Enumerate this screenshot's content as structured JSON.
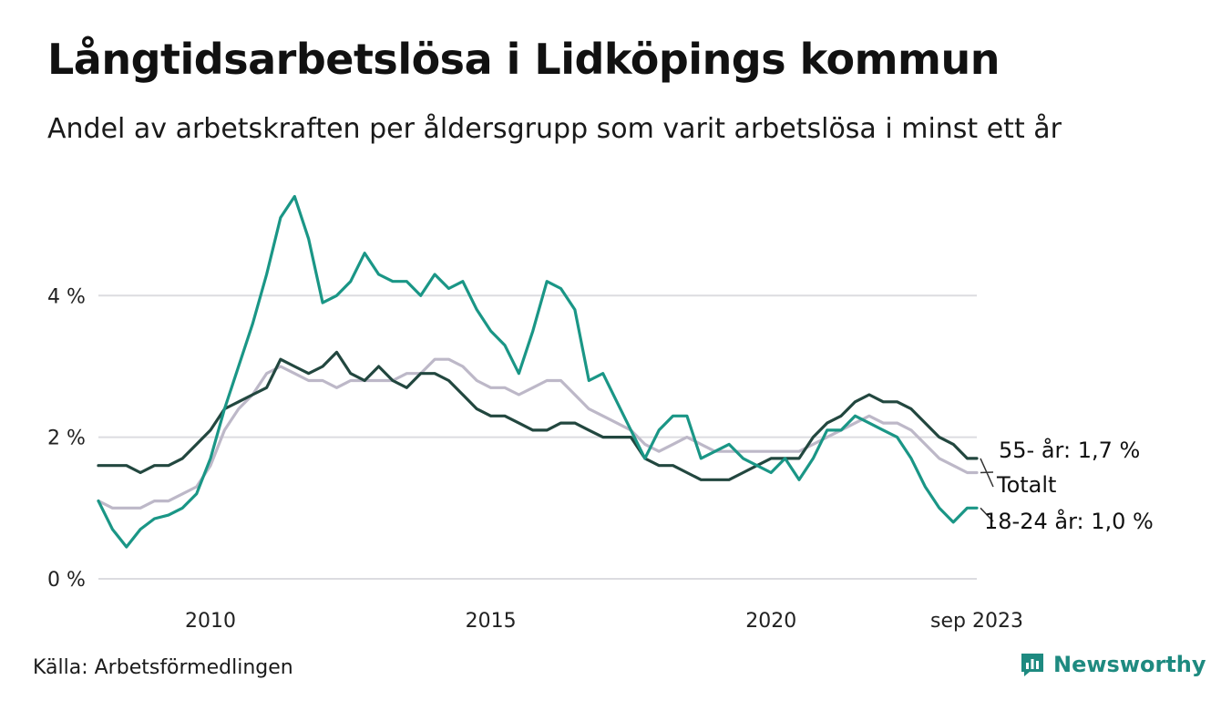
{
  "title": "Långtidsarbetslösa i Lidköpings kommun",
  "subtitle": "Andel av arbetskraften per åldersgrupp som varit arbetslösa i minst ett år",
  "source": "Källa: Arbetsförmedlingen",
  "brand": {
    "name": "Newsworthy",
    "color": "#1e8a80",
    "icon": "newsworthy-logo-icon"
  },
  "chart_data": {
    "type": "line",
    "title": "Långtidsarbetslösa i Lidköpings kommun",
    "xlabel": "",
    "ylabel": "",
    "xlim": [
      2008.0,
      2023.67
    ],
    "ylim": [
      0,
      5.6
    ],
    "y_ticks": [
      {
        "value": 0,
        "label": "0 %"
      },
      {
        "value": 2,
        "label": "2 %"
      },
      {
        "value": 4,
        "label": "4 %"
      }
    ],
    "x_ticks": [
      {
        "value": 2010,
        "label": "2010"
      },
      {
        "value": 2015,
        "label": "2015"
      },
      {
        "value": 2020,
        "label": "2020"
      },
      {
        "value": 2023.67,
        "label": "sep 2023"
      }
    ],
    "grid": true,
    "series": [
      {
        "name": "Totalt",
        "color": "#bdb8c8",
        "end_label": "Totalt",
        "points": [
          [
            2008.0,
            1.1
          ],
          [
            2008.25,
            1.0
          ],
          [
            2008.5,
            1.0
          ],
          [
            2008.75,
            1.0
          ],
          [
            2009.0,
            1.1
          ],
          [
            2009.25,
            1.1
          ],
          [
            2009.5,
            1.2
          ],
          [
            2009.75,
            1.3
          ],
          [
            2010.0,
            1.6
          ],
          [
            2010.25,
            2.1
          ],
          [
            2010.5,
            2.4
          ],
          [
            2010.75,
            2.6
          ],
          [
            2011.0,
            2.9
          ],
          [
            2011.25,
            3.0
          ],
          [
            2011.5,
            2.9
          ],
          [
            2011.75,
            2.8
          ],
          [
            2012.0,
            2.8
          ],
          [
            2012.25,
            2.7
          ],
          [
            2012.5,
            2.8
          ],
          [
            2012.75,
            2.8
          ],
          [
            2013.0,
            2.8
          ],
          [
            2013.25,
            2.8
          ],
          [
            2013.5,
            2.9
          ],
          [
            2013.75,
            2.9
          ],
          [
            2014.0,
            3.1
          ],
          [
            2014.25,
            3.1
          ],
          [
            2014.5,
            3.0
          ],
          [
            2014.75,
            2.8
          ],
          [
            2015.0,
            2.7
          ],
          [
            2015.25,
            2.7
          ],
          [
            2015.5,
            2.6
          ],
          [
            2015.75,
            2.7
          ],
          [
            2016.0,
            2.8
          ],
          [
            2016.25,
            2.8
          ],
          [
            2016.5,
            2.6
          ],
          [
            2016.75,
            2.4
          ],
          [
            2017.0,
            2.3
          ],
          [
            2017.25,
            2.2
          ],
          [
            2017.5,
            2.1
          ],
          [
            2017.75,
            1.9
          ],
          [
            2018.0,
            1.8
          ],
          [
            2018.25,
            1.9
          ],
          [
            2018.5,
            2.0
          ],
          [
            2018.75,
            1.9
          ],
          [
            2019.0,
            1.8
          ],
          [
            2019.25,
            1.8
          ],
          [
            2019.5,
            1.8
          ],
          [
            2019.75,
            1.8
          ],
          [
            2020.0,
            1.8
          ],
          [
            2020.25,
            1.8
          ],
          [
            2020.5,
            1.8
          ],
          [
            2020.75,
            1.9
          ],
          [
            2021.0,
            2.0
          ],
          [
            2021.25,
            2.1
          ],
          [
            2021.5,
            2.2
          ],
          [
            2021.75,
            2.3
          ],
          [
            2022.0,
            2.2
          ],
          [
            2022.25,
            2.2
          ],
          [
            2022.5,
            2.1
          ],
          [
            2022.75,
            1.9
          ],
          [
            2023.0,
            1.7
          ],
          [
            2023.25,
            1.6
          ],
          [
            2023.5,
            1.5
          ],
          [
            2023.67,
            1.5
          ]
        ]
      },
      {
        "name": "55- år",
        "color": "#22473f",
        "end_label": "55- år: 1,7 %",
        "points": [
          [
            2008.0,
            1.6
          ],
          [
            2008.25,
            1.6
          ],
          [
            2008.5,
            1.6
          ],
          [
            2008.75,
            1.5
          ],
          [
            2009.0,
            1.6
          ],
          [
            2009.25,
            1.6
          ],
          [
            2009.5,
            1.7
          ],
          [
            2009.75,
            1.9
          ],
          [
            2010.0,
            2.1
          ],
          [
            2010.25,
            2.4
          ],
          [
            2010.5,
            2.5
          ],
          [
            2010.75,
            2.6
          ],
          [
            2011.0,
            2.7
          ],
          [
            2011.25,
            3.1
          ],
          [
            2011.5,
            3.0
          ],
          [
            2011.75,
            2.9
          ],
          [
            2012.0,
            3.0
          ],
          [
            2012.25,
            3.2
          ],
          [
            2012.5,
            2.9
          ],
          [
            2012.75,
            2.8
          ],
          [
            2013.0,
            3.0
          ],
          [
            2013.25,
            2.8
          ],
          [
            2013.5,
            2.7
          ],
          [
            2013.75,
            2.9
          ],
          [
            2014.0,
            2.9
          ],
          [
            2014.25,
            2.8
          ],
          [
            2014.5,
            2.6
          ],
          [
            2014.75,
            2.4
          ],
          [
            2015.0,
            2.3
          ],
          [
            2015.25,
            2.3
          ],
          [
            2015.5,
            2.2
          ],
          [
            2015.75,
            2.1
          ],
          [
            2016.0,
            2.1
          ],
          [
            2016.25,
            2.2
          ],
          [
            2016.5,
            2.2
          ],
          [
            2016.75,
            2.1
          ],
          [
            2017.0,
            2.0
          ],
          [
            2017.25,
            2.0
          ],
          [
            2017.5,
            2.0
          ],
          [
            2017.75,
            1.7
          ],
          [
            2018.0,
            1.6
          ],
          [
            2018.25,
            1.6
          ],
          [
            2018.5,
            1.5
          ],
          [
            2018.75,
            1.4
          ],
          [
            2019.0,
            1.4
          ],
          [
            2019.25,
            1.4
          ],
          [
            2019.5,
            1.5
          ],
          [
            2019.75,
            1.6
          ],
          [
            2020.0,
            1.7
          ],
          [
            2020.25,
            1.7
          ],
          [
            2020.5,
            1.7
          ],
          [
            2020.75,
            2.0
          ],
          [
            2021.0,
            2.2
          ],
          [
            2021.25,
            2.3
          ],
          [
            2021.5,
            2.5
          ],
          [
            2021.75,
            2.6
          ],
          [
            2022.0,
            2.5
          ],
          [
            2022.25,
            2.5
          ],
          [
            2022.5,
            2.4
          ],
          [
            2022.75,
            2.2
          ],
          [
            2023.0,
            2.0
          ],
          [
            2023.25,
            1.9
          ],
          [
            2023.5,
            1.7
          ],
          [
            2023.67,
            1.7
          ]
        ]
      },
      {
        "name": "18-24 år",
        "color": "#1a9686",
        "end_label": "18-24 år: 1,0 %",
        "points": [
          [
            2008.0,
            1.1
          ],
          [
            2008.25,
            0.7
          ],
          [
            2008.5,
            0.45
          ],
          [
            2008.75,
            0.7
          ],
          [
            2009.0,
            0.85
          ],
          [
            2009.25,
            0.9
          ],
          [
            2009.5,
            1.0
          ],
          [
            2009.75,
            1.2
          ],
          [
            2010.0,
            1.7
          ],
          [
            2010.25,
            2.4
          ],
          [
            2010.5,
            3.0
          ],
          [
            2010.75,
            3.6
          ],
          [
            2011.0,
            4.3
          ],
          [
            2011.25,
            5.1
          ],
          [
            2011.5,
            5.4
          ],
          [
            2011.75,
            4.8
          ],
          [
            2012.0,
            3.9
          ],
          [
            2012.25,
            4.0
          ],
          [
            2012.5,
            4.2
          ],
          [
            2012.75,
            4.6
          ],
          [
            2013.0,
            4.3
          ],
          [
            2013.25,
            4.2
          ],
          [
            2013.5,
            4.2
          ],
          [
            2013.75,
            4.0
          ],
          [
            2014.0,
            4.3
          ],
          [
            2014.25,
            4.1
          ],
          [
            2014.5,
            4.2
          ],
          [
            2014.75,
            3.8
          ],
          [
            2015.0,
            3.5
          ],
          [
            2015.25,
            3.3
          ],
          [
            2015.5,
            2.9
          ],
          [
            2015.75,
            3.5
          ],
          [
            2016.0,
            4.2
          ],
          [
            2016.25,
            4.1
          ],
          [
            2016.5,
            3.8
          ],
          [
            2016.75,
            2.8
          ],
          [
            2017.0,
            2.9
          ],
          [
            2017.25,
            2.5
          ],
          [
            2017.5,
            2.1
          ],
          [
            2017.75,
            1.7
          ],
          [
            2018.0,
            2.1
          ],
          [
            2018.25,
            2.3
          ],
          [
            2018.5,
            2.3
          ],
          [
            2018.75,
            1.7
          ],
          [
            2019.0,
            1.8
          ],
          [
            2019.25,
            1.9
          ],
          [
            2019.5,
            1.7
          ],
          [
            2019.75,
            1.6
          ],
          [
            2020.0,
            1.5
          ],
          [
            2020.25,
            1.7
          ],
          [
            2020.5,
            1.4
          ],
          [
            2020.75,
            1.7
          ],
          [
            2021.0,
            2.1
          ],
          [
            2021.25,
            2.1
          ],
          [
            2021.5,
            2.3
          ],
          [
            2021.75,
            2.2
          ],
          [
            2022.0,
            2.1
          ],
          [
            2022.25,
            2.0
          ],
          [
            2022.5,
            1.7
          ],
          [
            2022.75,
            1.3
          ],
          [
            2023.0,
            1.0
          ],
          [
            2023.25,
            0.8
          ],
          [
            2023.5,
            1.0
          ],
          [
            2023.67,
            1.0
          ]
        ]
      }
    ]
  }
}
